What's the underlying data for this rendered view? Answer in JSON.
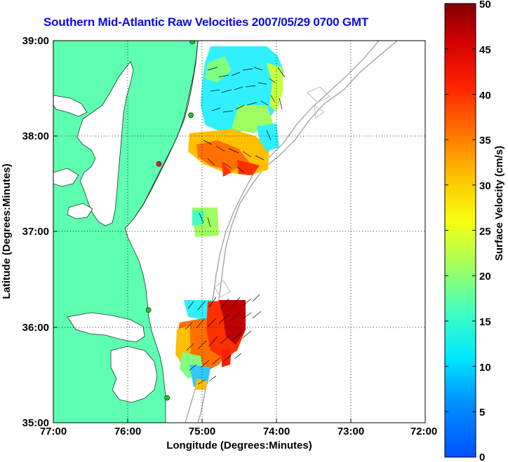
{
  "title": "Southern Mid-Atlantic Raw Velocities 2007/05/29 0700 GMT",
  "map": {
    "xlabel": "Longitude (Degrees:Minutes)",
    "ylabel": "Latitude (Degrees:Minutes)",
    "x_ticks": [
      "77:00",
      "76:00",
      "75:00",
      "74:00",
      "73:00",
      "72:00"
    ],
    "y_ticks": [
      "39:00",
      "38:00",
      "37:00",
      "36:00",
      "35:00"
    ],
    "lon_range": [
      -77,
      -72
    ],
    "lat_range": [
      35,
      39
    ],
    "land_color": "#5effb0",
    "grid": "dotted"
  },
  "colorbar": {
    "label": "Surface Velocity (cm/s)",
    "ticks": [
      "0",
      "5",
      "10",
      "15",
      "20",
      "25",
      "30",
      "35",
      "40",
      "45",
      "50"
    ],
    "range": [
      0,
      50
    ],
    "colormap": "jet"
  },
  "stations": [
    {
      "lon": -75.13,
      "lat": 38.99,
      "color": "#22c422"
    },
    {
      "lon": -75.15,
      "lat": 38.22,
      "color": "#22c422"
    },
    {
      "lon": -75.58,
      "lat": 37.71,
      "color": "#e02020"
    },
    {
      "lon": -75.72,
      "lat": 36.18,
      "color": "#22c422"
    },
    {
      "lon": -75.47,
      "lat": 35.26,
      "color": "#22c422"
    }
  ]
}
